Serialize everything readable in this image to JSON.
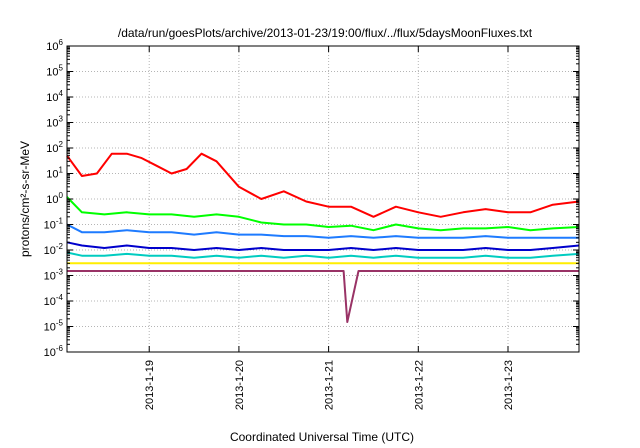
{
  "chart_data": {
    "type": "line",
    "title": "/data/run/goesPlots/archive/2013-01-23/19:00/flux/../flux/5daysMoonFluxes.txt",
    "xlabel": "Coordinated Universal Time (UTC)",
    "ylabel": "protons/cm²-s-sr-MeV",
    "y_scale": "log",
    "ylim": [
      1e-06,
      1000000.0
    ],
    "xlim": [
      "2013-01-18T02:00",
      "2013-01-23T19:00"
    ],
    "grid": true,
    "legend": "none",
    "x_tick_labels": [
      "2013-1-19",
      "2013-1-20",
      "2013-1-21",
      "2013-1-22",
      "2013-1-23"
    ],
    "x_ticks": [
      "2013-01-19",
      "2013-01-20",
      "2013-01-21",
      "2013-01-22",
      "2013-01-23"
    ],
    "y_tick_labels": [
      {
        "base": "10",
        "exp": "-6"
      },
      {
        "base": "10",
        "exp": "-5"
      },
      {
        "base": "10",
        "exp": "-4"
      },
      {
        "base": "10",
        "exp": "-3"
      },
      {
        "base": "10",
        "exp": "-2"
      },
      {
        "base": "10",
        "exp": "-1"
      },
      {
        "base": "10",
        "exp": "0"
      },
      {
        "base": "10",
        "exp": "1"
      },
      {
        "base": "10",
        "exp": "2"
      },
      {
        "base": "10",
        "exp": "3"
      },
      {
        "base": "10",
        "exp": "4"
      },
      {
        "base": "10",
        "exp": "5"
      },
      {
        "base": "10",
        "exp": "6"
      }
    ],
    "series": [
      {
        "color": "#ff0000",
        "x": [
          "2013-01-18T02:00",
          "2013-01-18T06:00",
          "2013-01-18T10:00",
          "2013-01-18T14:00",
          "2013-01-18T18:00",
          "2013-01-18T22:00",
          "2013-01-19T02:00",
          "2013-01-19T06:00",
          "2013-01-19T10:00",
          "2013-01-19T14:00",
          "2013-01-19T18:00",
          "2013-01-20T00:00",
          "2013-01-20T06:00",
          "2013-01-20T12:00",
          "2013-01-20T18:00",
          "2013-01-21T00:00",
          "2013-01-21T06:00",
          "2013-01-21T12:00",
          "2013-01-21T18:00",
          "2013-01-22T00:00",
          "2013-01-22T06:00",
          "2013-01-22T12:00",
          "2013-01-22T18:00",
          "2013-01-23T00:00",
          "2013-01-23T06:00",
          "2013-01-23T12:00",
          "2013-01-23T19:00"
        ],
        "y": [
          50,
          8,
          10,
          60,
          60,
          40,
          20,
          10,
          15,
          60,
          30,
          3,
          1,
          2,
          0.8,
          0.5,
          0.5,
          0.2,
          0.5,
          0.3,
          0.2,
          0.3,
          0.4,
          0.3,
          0.3,
          0.6,
          0.8
        ]
      },
      {
        "color": "#00ff00",
        "x": [
          "2013-01-18T02:00",
          "2013-01-18T06:00",
          "2013-01-18T12:00",
          "2013-01-18T18:00",
          "2013-01-19T00:00",
          "2013-01-19T06:00",
          "2013-01-19T12:00",
          "2013-01-19T18:00",
          "2013-01-20T00:00",
          "2013-01-20T06:00",
          "2013-01-20T12:00",
          "2013-01-20T18:00",
          "2013-01-21T00:00",
          "2013-01-21T06:00",
          "2013-01-21T12:00",
          "2013-01-21T18:00",
          "2013-01-22T00:00",
          "2013-01-22T06:00",
          "2013-01-22T12:00",
          "2013-01-22T18:00",
          "2013-01-23T00:00",
          "2013-01-23T06:00",
          "2013-01-23T12:00",
          "2013-01-23T19:00"
        ],
        "y": [
          1.2,
          0.3,
          0.25,
          0.3,
          0.25,
          0.25,
          0.2,
          0.25,
          0.2,
          0.12,
          0.1,
          0.1,
          0.08,
          0.09,
          0.06,
          0.1,
          0.07,
          0.06,
          0.07,
          0.07,
          0.08,
          0.06,
          0.07,
          0.08
        ]
      },
      {
        "color": "#1e7bff",
        "x": [
          "2013-01-18T02:00",
          "2013-01-18T06:00",
          "2013-01-18T12:00",
          "2013-01-18T18:00",
          "2013-01-19T00:00",
          "2013-01-19T06:00",
          "2013-01-19T12:00",
          "2013-01-19T18:00",
          "2013-01-20T00:00",
          "2013-01-20T06:00",
          "2013-01-20T12:00",
          "2013-01-20T18:00",
          "2013-01-21T00:00",
          "2013-01-21T06:00",
          "2013-01-21T12:00",
          "2013-01-21T18:00",
          "2013-01-22T00:00",
          "2013-01-22T06:00",
          "2013-01-22T12:00",
          "2013-01-22T18:00",
          "2013-01-23T00:00",
          "2013-01-23T06:00",
          "2013-01-23T12:00",
          "2013-01-23T19:00"
        ],
        "y": [
          0.1,
          0.05,
          0.05,
          0.06,
          0.05,
          0.05,
          0.04,
          0.05,
          0.04,
          0.04,
          0.035,
          0.035,
          0.03,
          0.035,
          0.03,
          0.035,
          0.03,
          0.03,
          0.03,
          0.035,
          0.03,
          0.03,
          0.03,
          0.03
        ]
      },
      {
        "color": "#0000cc",
        "x": [
          "2013-01-18T02:00",
          "2013-01-18T06:00",
          "2013-01-18T12:00",
          "2013-01-18T18:00",
          "2013-01-19T00:00",
          "2013-01-19T06:00",
          "2013-01-19T12:00",
          "2013-01-19T18:00",
          "2013-01-20T00:00",
          "2013-01-20T06:00",
          "2013-01-20T12:00",
          "2013-01-20T18:00",
          "2013-01-21T00:00",
          "2013-01-21T06:00",
          "2013-01-21T12:00",
          "2013-01-21T18:00",
          "2013-01-22T00:00",
          "2013-01-22T06:00",
          "2013-01-22T12:00",
          "2013-01-22T18:00",
          "2013-01-23T00:00",
          "2013-01-23T06:00",
          "2013-01-23T12:00",
          "2013-01-23T19:00"
        ],
        "y": [
          0.02,
          0.015,
          0.012,
          0.015,
          0.012,
          0.012,
          0.01,
          0.012,
          0.01,
          0.012,
          0.01,
          0.01,
          0.01,
          0.012,
          0.01,
          0.012,
          0.01,
          0.01,
          0.01,
          0.012,
          0.01,
          0.01,
          0.012,
          0.015
        ]
      },
      {
        "color": "#00ccc0",
        "x": [
          "2013-01-18T02:00",
          "2013-01-18T06:00",
          "2013-01-18T12:00",
          "2013-01-18T18:00",
          "2013-01-19T00:00",
          "2013-01-19T06:00",
          "2013-01-19T12:00",
          "2013-01-19T18:00",
          "2013-01-20T00:00",
          "2013-01-20T06:00",
          "2013-01-20T12:00",
          "2013-01-20T18:00",
          "2013-01-21T00:00",
          "2013-01-21T06:00",
          "2013-01-21T12:00",
          "2013-01-21T18:00",
          "2013-01-22T00:00",
          "2013-01-22T06:00",
          "2013-01-22T12:00",
          "2013-01-22T18:00",
          "2013-01-23T00:00",
          "2013-01-23T06:00",
          "2013-01-23T12:00",
          "2013-01-23T19:00"
        ],
        "y": [
          0.008,
          0.006,
          0.006,
          0.007,
          0.006,
          0.006,
          0.005,
          0.006,
          0.005,
          0.006,
          0.005,
          0.006,
          0.005,
          0.006,
          0.005,
          0.006,
          0.005,
          0.005,
          0.005,
          0.006,
          0.005,
          0.005,
          0.006,
          0.007
        ]
      },
      {
        "color": "#ffee00",
        "x": [
          "2013-01-18T02:00",
          "2013-01-18T12:00",
          "2013-01-19T00:00",
          "2013-01-19T12:00",
          "2013-01-20T00:00",
          "2013-01-20T12:00",
          "2013-01-21T00:00",
          "2013-01-21T12:00",
          "2013-01-22T00:00",
          "2013-01-22T12:00",
          "2013-01-23T00:00",
          "2013-01-23T12:00",
          "2013-01-23T19:00"
        ],
        "y": [
          0.003,
          0.003,
          0.003,
          0.003,
          0.003,
          0.003,
          0.003,
          0.003,
          0.003,
          0.003,
          0.003,
          0.003,
          0.003
        ]
      },
      {
        "color": "#993366",
        "x": [
          "2013-01-18T02:00",
          "2013-01-18T06:00",
          "2013-01-18T12:00",
          "2013-01-18T18:00",
          "2013-01-19T00:00",
          "2013-01-19T06:00",
          "2013-01-19T12:00",
          "2013-01-19T18:00",
          "2013-01-20T00:00",
          "2013-01-20T06:00",
          "2013-01-20T12:00",
          "2013-01-20T18:00",
          "2013-01-20T21:00",
          "2013-01-21T00:00",
          "2013-01-21T03:00",
          "2013-01-21T04:00",
          "2013-01-21T05:00",
          "2013-01-21T08:00",
          "2013-01-21T12:00",
          "2013-01-21T18:00",
          "2013-01-22T00:00",
          "2013-01-22T06:00",
          "2013-01-22T12:00",
          "2013-01-22T18:00",
          "2013-01-23T00:00",
          "2013-01-23T06:00",
          "2013-01-23T12:00",
          "2013-01-23T19:00"
        ],
        "y": [
          0.0015,
          0.0015,
          0.0015,
          0.0015,
          0.0015,
          0.0015,
          0.0015,
          0.0015,
          0.0015,
          0.0015,
          0.0015,
          0.0015,
          0.0015,
          0.0015,
          0.0015,
          0.0015,
          1.5e-05,
          0.0015,
          0.0015,
          0.0015,
          0.0015,
          0.0015,
          0.0015,
          0.0015,
          0.0015,
          0.0015,
          0.0015,
          0.0015
        ]
      }
    ]
  }
}
